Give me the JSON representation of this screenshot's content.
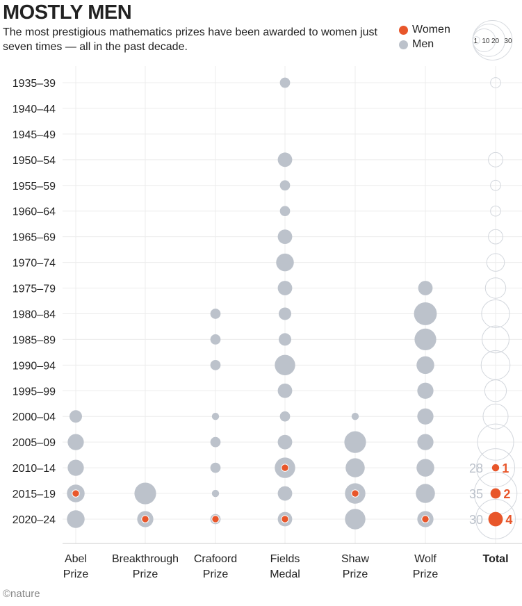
{
  "title": "MOSTLY MEN",
  "subtitle": "The most prestigious mathematics prizes have been awarded to women just seven times — all in the past decade.",
  "legend": {
    "women": "Women",
    "men": "Men",
    "size_labels": [
      "1",
      "10",
      "20",
      "30"
    ],
    "size_values": [
      1,
      10,
      20,
      30
    ]
  },
  "colors": {
    "women": "#e8562a",
    "men": "#bcc2cb",
    "grid": "#ececec",
    "total_outline": "#d3d7dd"
  },
  "logo": "©nature",
  "chart_data": {
    "type": "bubble",
    "title": "MOSTLY MEN",
    "periods": [
      "1935–39",
      "1940–44",
      "1945–49",
      "1950–54",
      "1955–59",
      "1960–64",
      "1965–69",
      "1970–74",
      "1975–79",
      "1980–84",
      "1985–89",
      "1990–94",
      "1995–99",
      "2000–04",
      "2005–09",
      "2010–14",
      "2015–19",
      "2020–24"
    ],
    "prizes": [
      {
        "name": [
          "Abel",
          "Prize"
        ],
        "men": [
          0,
          0,
          0,
          0,
          0,
          0,
          0,
          0,
          0,
          0,
          0,
          0,
          0,
          3,
          5,
          5,
          5,
          6
        ],
        "women": [
          0,
          0,
          0,
          0,
          0,
          0,
          0,
          0,
          0,
          0,
          0,
          0,
          0,
          0,
          0,
          0,
          1,
          0
        ]
      },
      {
        "name": [
          "Breakthrough",
          "Prize"
        ],
        "men": [
          0,
          0,
          0,
          0,
          0,
          0,
          0,
          0,
          0,
          0,
          0,
          0,
          0,
          0,
          0,
          0,
          9,
          4
        ],
        "women": [
          0,
          0,
          0,
          0,
          0,
          0,
          0,
          0,
          0,
          0,
          0,
          0,
          0,
          0,
          0,
          0,
          0,
          1
        ]
      },
      {
        "name": [
          "Crafoord",
          "Prize"
        ],
        "men": [
          0,
          0,
          0,
          0,
          0,
          0,
          0,
          0,
          0,
          2,
          2,
          2,
          0,
          1,
          2,
          2,
          1,
          1
        ],
        "women": [
          0,
          0,
          0,
          0,
          0,
          0,
          0,
          0,
          0,
          0,
          0,
          0,
          0,
          0,
          0,
          0,
          0,
          1
        ]
      },
      {
        "name": [
          "Fields",
          "Medal"
        ],
        "men": [
          2,
          0,
          0,
          4,
          2,
          2,
          4,
          6,
          4,
          3,
          3,
          8,
          4,
          2,
          4,
          7,
          4,
          3
        ],
        "women": [
          0,
          0,
          0,
          0,
          0,
          0,
          0,
          0,
          0,
          0,
          0,
          0,
          0,
          0,
          0,
          1,
          0,
          1
        ]
      },
      {
        "name": [
          "Shaw",
          "Prize"
        ],
        "men": [
          0,
          0,
          0,
          0,
          0,
          0,
          0,
          0,
          0,
          0,
          0,
          0,
          0,
          1,
          9,
          7,
          7,
          8
        ],
        "women": [
          0,
          0,
          0,
          0,
          0,
          0,
          0,
          0,
          0,
          0,
          0,
          0,
          0,
          0,
          0,
          0,
          1,
          0
        ]
      },
      {
        "name": [
          "Wolf",
          "Prize"
        ],
        "men": [
          0,
          0,
          0,
          0,
          0,
          0,
          0,
          0,
          4,
          10,
          9,
          6,
          5,
          5,
          5,
          6,
          7,
          4
        ],
        "women": [
          0,
          0,
          0,
          0,
          0,
          0,
          0,
          0,
          0,
          0,
          0,
          0,
          0,
          0,
          0,
          0,
          0,
          1
        ]
      }
    ],
    "total_label": "Total",
    "total_annotations": [
      {
        "period": "2010–14",
        "total": "28",
        "women": "1"
      },
      {
        "period": "2015–19",
        "total": "35",
        "women": "2"
      },
      {
        "period": "2020–24",
        "total": "30",
        "women": "4"
      }
    ]
  }
}
